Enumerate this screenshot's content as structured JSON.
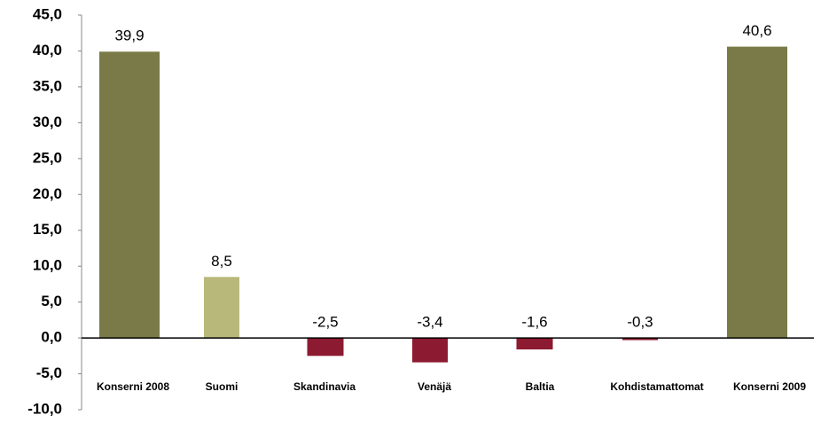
{
  "chart_data": {
    "type": "bar",
    "categories": [
      "Konserni 2008",
      "Suomi",
      "Skandinavia",
      "Venäjä",
      "Baltia",
      "Kohdistamattomat",
      "Konserni 2009"
    ],
    "values": [
      39.9,
      8.5,
      -2.5,
      -3.4,
      -1.6,
      -0.3,
      40.6
    ],
    "value_labels": [
      "39,9",
      "8,5",
      "-2,5",
      "-3,4",
      "-1,6",
      "-0,3",
      "40,6"
    ],
    "colors": [
      "#7a7a48",
      "#b8b87a",
      "#8c1a30",
      "#8c1a30",
      "#8c1a30",
      "#8c1a30",
      "#7a7a48"
    ],
    "ylim": [
      -10,
      45
    ],
    "yticks": [
      {
        "value": -10,
        "label": "-10,0"
      },
      {
        "value": -5,
        "label": "-5,0"
      },
      {
        "value": 0,
        "label": "0,0"
      },
      {
        "value": 5,
        "label": "5,0"
      },
      {
        "value": 10,
        "label": "10,0"
      },
      {
        "value": 15,
        "label": "15,0"
      },
      {
        "value": 20,
        "label": "20,0"
      },
      {
        "value": 25,
        "label": "25,0"
      },
      {
        "value": 30,
        "label": "30,0"
      },
      {
        "value": 35,
        "label": "35,0"
      },
      {
        "value": 40,
        "label": "40,0"
      },
      {
        "value": 45,
        "label": "45,0"
      }
    ]
  }
}
